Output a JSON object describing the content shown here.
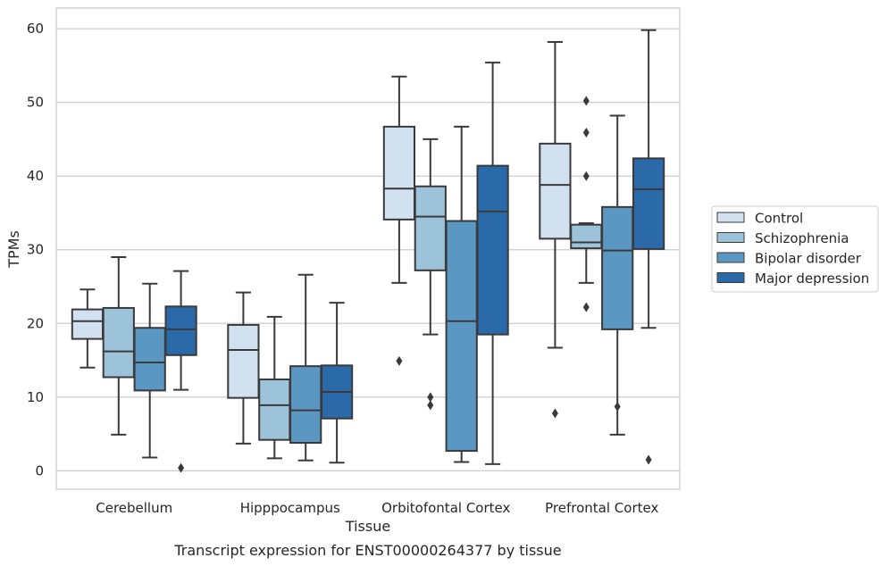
{
  "chart_data": {
    "type": "boxplot",
    "xlabel": "Tissue",
    "ylabel": "TPMs",
    "caption": "Transcript expression for ENST00000264377 by tissue",
    "ylim": [
      -2.5,
      62.8
    ],
    "yticks": [
      0,
      10,
      20,
      30,
      40,
      50,
      60
    ],
    "grid": "horizontal",
    "legend_position": "right",
    "categories": [
      "Cerebellum",
      "Hipppocampus",
      "Orbitofontal Cortex",
      "Prefrontal Cortex"
    ],
    "series": [
      {
        "name": "Control",
        "color": "#d2e1f0",
        "boxes": [
          {
            "whisker_low": 14.0,
            "q1": 17.9,
            "median": 20.3,
            "q3": 21.9,
            "whisker_high": 24.6,
            "outliers": []
          },
          {
            "whisker_low": 3.7,
            "q1": 9.9,
            "median": 16.4,
            "q3": 19.8,
            "whisker_high": 24.2,
            "outliers": []
          },
          {
            "whisker_low": 25.5,
            "q1": 34.1,
            "median": 38.3,
            "q3": 46.7,
            "whisker_high": 53.5,
            "outliers": [
              14.9
            ]
          },
          {
            "whisker_low": 16.7,
            "q1": 31.5,
            "median": 38.8,
            "q3": 44.4,
            "whisker_high": 58.2,
            "outliers": [
              7.8
            ]
          }
        ]
      },
      {
        "name": "Schizophrenia",
        "color": "#9cc3da",
        "boxes": [
          {
            "whisker_low": 4.9,
            "q1": 12.7,
            "median": 16.2,
            "q3": 22.1,
            "whisker_high": 29.0,
            "outliers": []
          },
          {
            "whisker_low": 1.7,
            "q1": 4.2,
            "median": 8.9,
            "q3": 12.4,
            "whisker_high": 20.9,
            "outliers": []
          },
          {
            "whisker_low": 18.5,
            "q1": 27.2,
            "median": 34.5,
            "q3": 38.6,
            "whisker_high": 45.0,
            "outliers": [
              8.9,
              10.0
            ]
          },
          {
            "whisker_low": 25.5,
            "q1": 30.2,
            "median": 31.0,
            "q3": 33.4,
            "whisker_high": 33.6,
            "outliers": [
              22.2,
              40.0,
              45.9,
              50.2
            ]
          }
        ]
      },
      {
        "name": "Bipolar disorder",
        "color": "#5a97c2",
        "boxes": [
          {
            "whisker_low": 1.8,
            "q1": 10.9,
            "median": 14.7,
            "q3": 19.4,
            "whisker_high": 25.4,
            "outliers": []
          },
          {
            "whisker_low": 1.4,
            "q1": 3.8,
            "median": 8.2,
            "q3": 14.2,
            "whisker_high": 26.6,
            "outliers": []
          },
          {
            "whisker_low": 1.2,
            "q1": 2.7,
            "median": 20.3,
            "q3": 33.9,
            "whisker_high": 46.7,
            "outliers": []
          },
          {
            "whisker_low": 4.9,
            "q1": 19.2,
            "median": 29.9,
            "q3": 35.8,
            "whisker_high": 48.2,
            "outliers": [
              8.7
            ]
          }
        ]
      },
      {
        "name": "Major depression",
        "color": "#2b6aa8",
        "boxes": [
          {
            "whisker_low": 11.0,
            "q1": 15.7,
            "median": 19.2,
            "q3": 22.3,
            "whisker_high": 27.1,
            "outliers": [
              0.4
            ]
          },
          {
            "whisker_low": 1.1,
            "q1": 7.1,
            "median": 10.7,
            "q3": 14.3,
            "whisker_high": 22.8,
            "outliers": []
          },
          {
            "whisker_low": 0.9,
            "q1": 18.5,
            "median": 35.2,
            "q3": 41.4,
            "whisker_high": 55.4,
            "outliers": []
          },
          {
            "whisker_low": 19.4,
            "q1": 30.1,
            "median": 38.2,
            "q3": 42.4,
            "whisker_high": 59.8,
            "outliers": [
              1.5
            ]
          }
        ]
      }
    ]
  }
}
